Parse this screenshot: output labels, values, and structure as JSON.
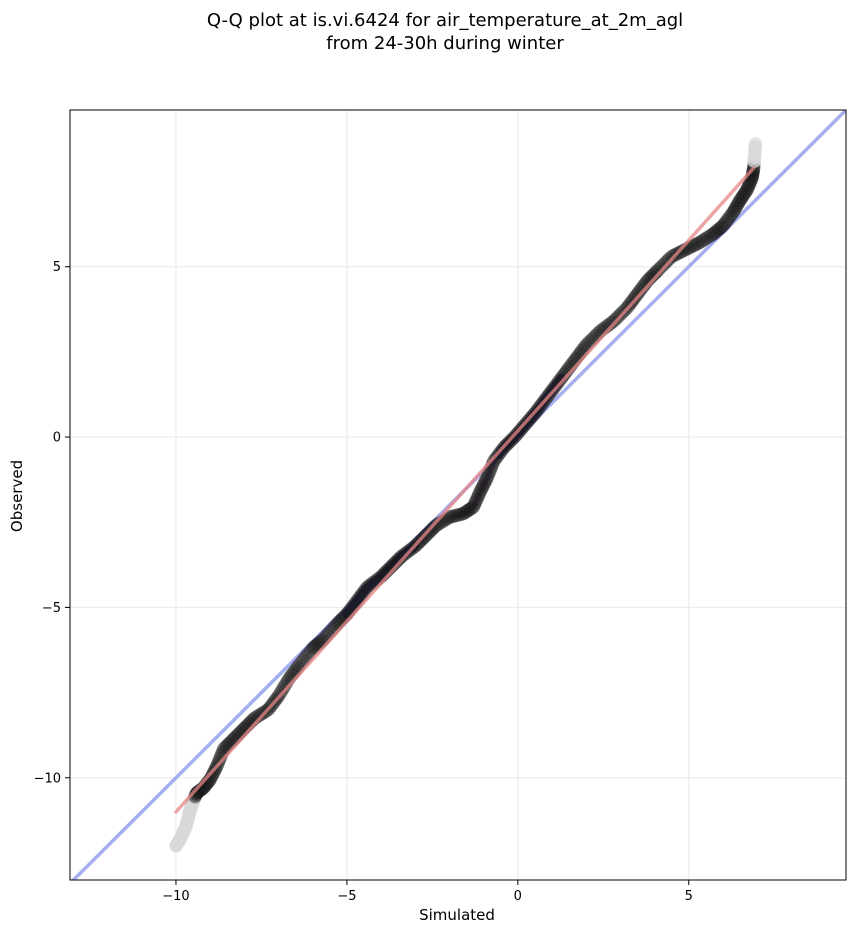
{
  "chart_data": {
    "type": "scatter",
    "title_line1": "Q-Q plot at is.vi.6424 for air_temperature_at_2m_agl",
    "title_line2": "from 24-30h during winter",
    "xlabel": "Simulated",
    "ylabel": "Observed",
    "xlim": [
      -13.1,
      9.6
    ],
    "ylim": [
      -13.0,
      9.6
    ],
    "xticks": [
      {
        "value": -10,
        "label": "−10"
      },
      {
        "value": -5,
        "label": "−5"
      },
      {
        "value": 0,
        "label": "0"
      },
      {
        "value": 5,
        "label": "5"
      }
    ],
    "yticks": [
      {
        "value": 5,
        "label": "5"
      },
      {
        "value": 0,
        "label": "0"
      },
      {
        "value": -5,
        "label": "−5"
      },
      {
        "value": -10,
        "label": "−10"
      }
    ],
    "grid": true,
    "reference_line": {
      "color": "#a7aef0"
    },
    "fit_line": {
      "color": "#e58787",
      "start": [
        -10.0,
        -11.0
      ],
      "end": [
        6.9,
        7.9
      ]
    },
    "center_band": {
      "color": "#2a2aa0"
    },
    "outlier_point_color": "#d8d8d8",
    "point_color": "#1a1a1a",
    "quantiles": [
      [
        -10.0,
        -12.0
      ],
      [
        -9.85,
        -11.75
      ],
      [
        -9.7,
        -11.4
      ],
      [
        -9.6,
        -11.0
      ],
      [
        -9.5,
        -10.7
      ],
      [
        -9.4,
        -10.45
      ],
      [
        -9.2,
        -10.3
      ],
      [
        -9.0,
        -10.05
      ],
      [
        -8.8,
        -9.65
      ],
      [
        -8.6,
        -9.15
      ],
      [
        -8.3,
        -8.85
      ],
      [
        -8.0,
        -8.55
      ],
      [
        -7.7,
        -8.25
      ],
      [
        -7.3,
        -8.0
      ],
      [
        -7.0,
        -7.6
      ],
      [
        -6.7,
        -7.1
      ],
      [
        -6.4,
        -6.7
      ],
      [
        -6.0,
        -6.2
      ],
      [
        -5.7,
        -5.95
      ],
      [
        -5.3,
        -5.5
      ],
      [
        -5.0,
        -5.2
      ],
      [
        -4.7,
        -4.8
      ],
      [
        -4.4,
        -4.4
      ],
      [
        -4.0,
        -4.1
      ],
      [
        -3.7,
        -3.8
      ],
      [
        -3.4,
        -3.5
      ],
      [
        -3.0,
        -3.2
      ],
      [
        -2.7,
        -2.9
      ],
      [
        -2.4,
        -2.6
      ],
      [
        -2.0,
        -2.35
      ],
      [
        -1.6,
        -2.25
      ],
      [
        -1.3,
        -2.05
      ],
      [
        -1.1,
        -1.6
      ],
      [
        -0.9,
        -1.2
      ],
      [
        -0.7,
        -0.7
      ],
      [
        -0.4,
        -0.3
      ],
      [
        -0.1,
        0.0
      ],
      [
        0.2,
        0.35
      ],
      [
        0.5,
        0.7
      ],
      [
        0.8,
        1.1
      ],
      [
        1.1,
        1.5
      ],
      [
        1.4,
        1.9
      ],
      [
        1.7,
        2.3
      ],
      [
        2.0,
        2.7
      ],
      [
        2.4,
        3.1
      ],
      [
        2.8,
        3.4
      ],
      [
        3.2,
        3.8
      ],
      [
        3.5,
        4.2
      ],
      [
        3.8,
        4.6
      ],
      [
        4.1,
        4.9
      ],
      [
        4.5,
        5.3
      ],
      [
        4.9,
        5.5
      ],
      [
        5.3,
        5.7
      ],
      [
        5.7,
        5.95
      ],
      [
        6.0,
        6.2
      ],
      [
        6.3,
        6.6
      ],
      [
        6.5,
        6.95
      ],
      [
        6.7,
        7.25
      ],
      [
        6.85,
        7.6
      ],
      [
        6.9,
        7.9
      ],
      [
        6.95,
        8.6
      ]
    ]
  }
}
